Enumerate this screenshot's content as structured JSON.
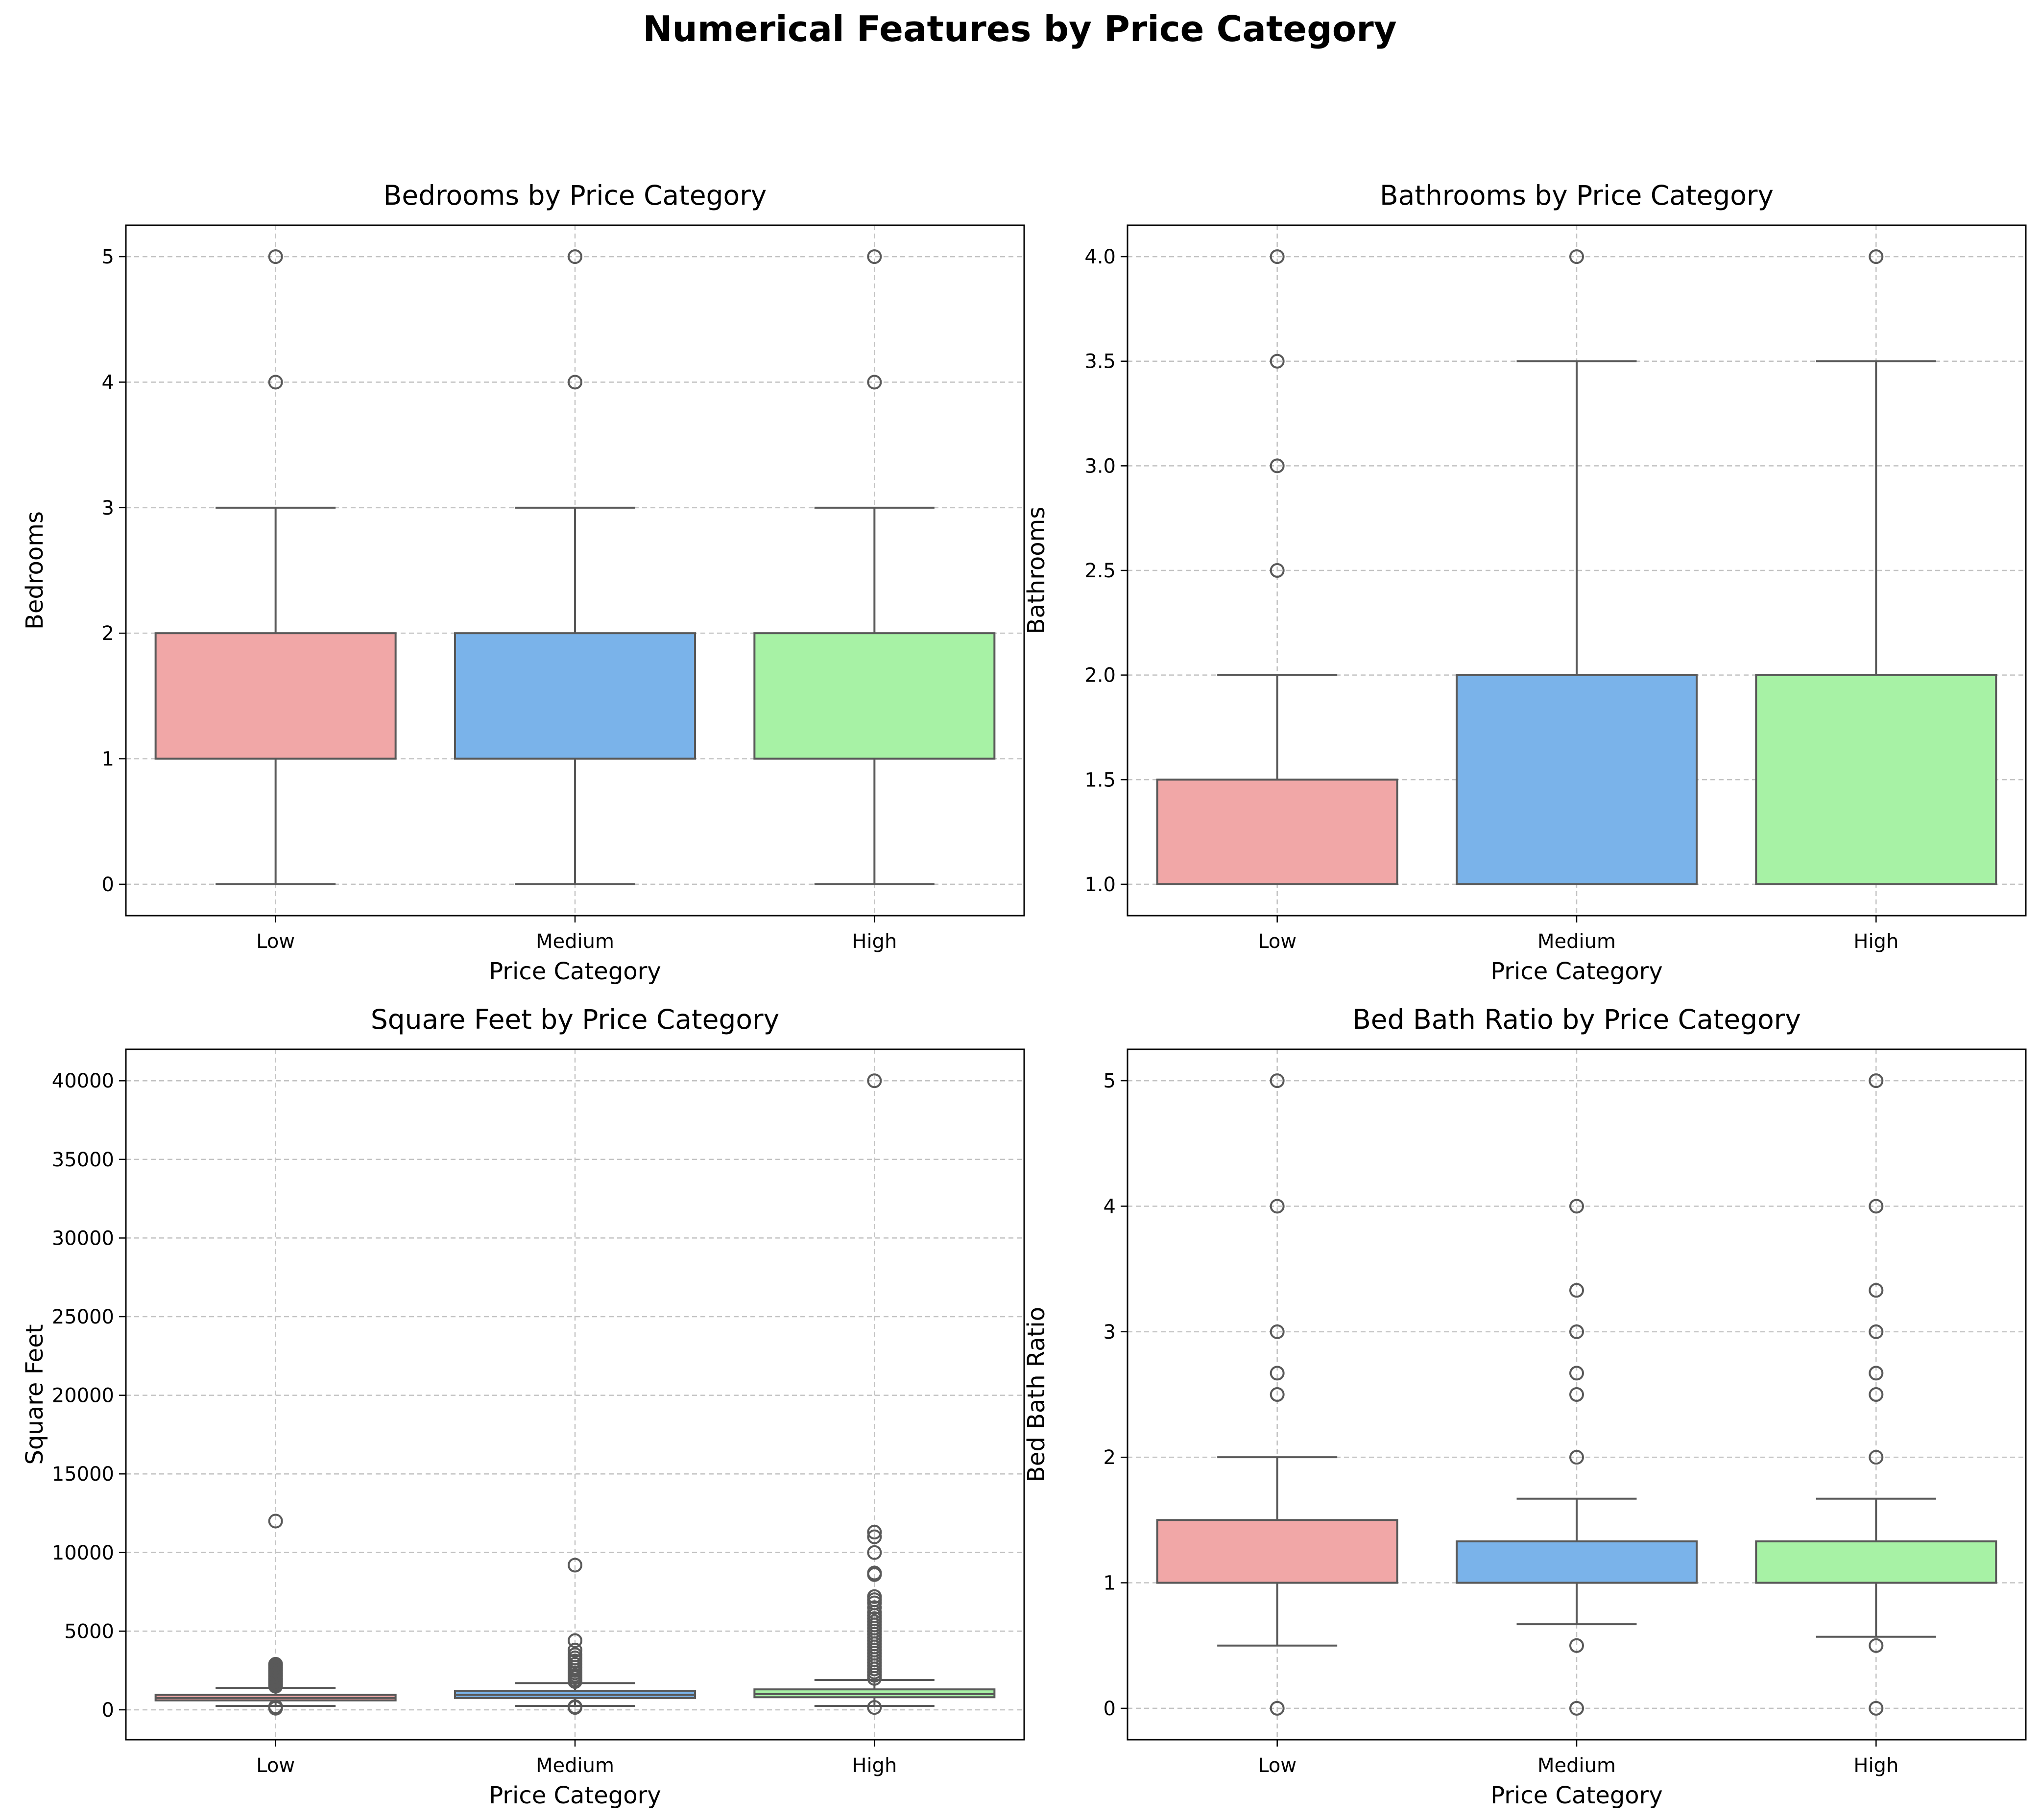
{
  "figure_title": "Numerical Features by Price Category",
  "palette": {
    "Low": "#f1a7a7",
    "Medium": "#7ab3ea",
    "High": "#a7f2a5"
  },
  "chart_data": [
    {
      "type": "box",
      "title": "Bedrooms by Price Category",
      "xlabel": "Price Category",
      "ylabel": "Bedrooms",
      "categories": [
        "Low",
        "Medium",
        "High"
      ],
      "ylim": [
        -0.25,
        5.25
      ],
      "yticks": [
        0,
        1,
        2,
        3,
        4,
        5
      ],
      "ytick_labels": [
        "0",
        "1",
        "2",
        "3",
        "4",
        "5"
      ],
      "grid": true,
      "boxes": [
        {
          "category": "Low",
          "whisker_low": 0,
          "q1": 1,
          "median": 1,
          "q3": 2,
          "whisker_high": 3,
          "outliers": [
            4,
            5
          ]
        },
        {
          "category": "Medium",
          "whisker_low": 0,
          "q1": 1,
          "median": 1,
          "q3": 2,
          "whisker_high": 3,
          "outliers": [
            4,
            5
          ]
        },
        {
          "category": "High",
          "whisker_low": 0,
          "q1": 1,
          "median": 1,
          "q3": 2,
          "whisker_high": 3,
          "outliers": [
            4,
            5
          ]
        }
      ]
    },
    {
      "type": "box",
      "title": "Bathrooms by Price Category",
      "xlabel": "Price Category",
      "ylabel": "Bathrooms",
      "categories": [
        "Low",
        "Medium",
        "High"
      ],
      "ylim": [
        0.85,
        4.15
      ],
      "yticks": [
        1.0,
        1.5,
        2.0,
        2.5,
        3.0,
        3.5,
        4.0
      ],
      "ytick_labels": [
        "1.0",
        "1.5",
        "2.0",
        "2.5",
        "3.0",
        "3.5",
        "4.0"
      ],
      "grid": true,
      "boxes": [
        {
          "category": "Low",
          "whisker_low": 1.0,
          "q1": 1.0,
          "median": 1.0,
          "q3": 1.5,
          "whisker_high": 2.0,
          "outliers": [
            2.5,
            3.0,
            3.5,
            4.0
          ]
        },
        {
          "category": "Medium",
          "whisker_low": 1.0,
          "q1": 1.0,
          "median": 1.0,
          "q3": 2.0,
          "whisker_high": 3.5,
          "outliers": [
            4.0
          ]
        },
        {
          "category": "High",
          "whisker_low": 1.0,
          "q1": 1.0,
          "median": 1.0,
          "q3": 2.0,
          "whisker_high": 3.5,
          "outliers": [
            4.0
          ]
        }
      ]
    },
    {
      "type": "box",
      "title": "Square Feet by Price Category",
      "xlabel": "Price Category",
      "ylabel": "Square Feet",
      "categories": [
        "Low",
        "Medium",
        "High"
      ],
      "ylim": [
        -1900,
        42000
      ],
      "yticks": [
        0,
        5000,
        10000,
        15000,
        20000,
        25000,
        30000,
        35000,
        40000
      ],
      "ytick_labels": [
        "0",
        "5000",
        "10000",
        "15000",
        "20000",
        "25000",
        "30000",
        "35000",
        "40000"
      ],
      "grid": true,
      "boxes": [
        {
          "category": "Low",
          "whisker_low": 250,
          "q1": 600,
          "median": 750,
          "q3": 950,
          "whisker_high": 1400,
          "outliers": [
            12000,
            2900,
            2800,
            2700,
            2600,
            2500,
            2400,
            2300,
            2200,
            2100,
            2000,
            1900,
            1800,
            1700,
            1600,
            1500,
            200,
            150,
            100
          ]
        },
        {
          "category": "Medium",
          "whisker_low": 250,
          "q1": 750,
          "median": 950,
          "q3": 1200,
          "whisker_high": 1700,
          "outliers": [
            9200,
            4400,
            3800,
            3500,
            3300,
            3100,
            2900,
            2700,
            2500,
            2350,
            2200,
            2050,
            1900,
            1800,
            200,
            150
          ]
        },
        {
          "category": "High",
          "whisker_low": 250,
          "q1": 800,
          "median": 1000,
          "q3": 1300,
          "whisker_high": 1900,
          "outliers": [
            40000,
            11300,
            11000,
            10000,
            8700,
            8600,
            7200,
            7000,
            6800,
            6500,
            6200,
            6000,
            5800,
            5600,
            5400,
            5200,
            5000,
            4800,
            4600,
            4400,
            4200,
            4000,
            3800,
            3600,
            3400,
            3200,
            3000,
            2800,
            2600,
            2400,
            2200,
            2000,
            150
          ]
        }
      ]
    },
    {
      "type": "box",
      "title": "Bed Bath Ratio by Price Category",
      "xlabel": "Price Category",
      "ylabel": "Bed Bath Ratio",
      "categories": [
        "Low",
        "Medium",
        "High"
      ],
      "ylim": [
        -0.25,
        5.25
      ],
      "yticks": [
        0,
        1,
        2,
        3,
        4,
        5
      ],
      "ytick_labels": [
        "0",
        "1",
        "2",
        "3",
        "4",
        "5"
      ],
      "grid": true,
      "boxes": [
        {
          "category": "Low",
          "whisker_low": 0.5,
          "q1": 1.0,
          "median": 1.0,
          "q3": 1.5,
          "whisker_high": 2.0,
          "outliers": [
            0,
            2.5,
            2.67,
            3.0,
            4.0,
            5.0
          ]
        },
        {
          "category": "Medium",
          "whisker_low": 0.67,
          "q1": 1.0,
          "median": 1.0,
          "q3": 1.33,
          "whisker_high": 1.67,
          "outliers": [
            0,
            0.5,
            2.0,
            2.5,
            2.67,
            3.0,
            3.33,
            4.0
          ]
        },
        {
          "category": "High",
          "whisker_low": 0.57,
          "q1": 1.0,
          "median": 1.0,
          "q3": 1.33,
          "whisker_high": 1.67,
          "outliers": [
            0,
            0.5,
            2.0,
            2.5,
            2.67,
            3.0,
            3.33,
            4.0,
            5.0
          ]
        }
      ]
    }
  ]
}
